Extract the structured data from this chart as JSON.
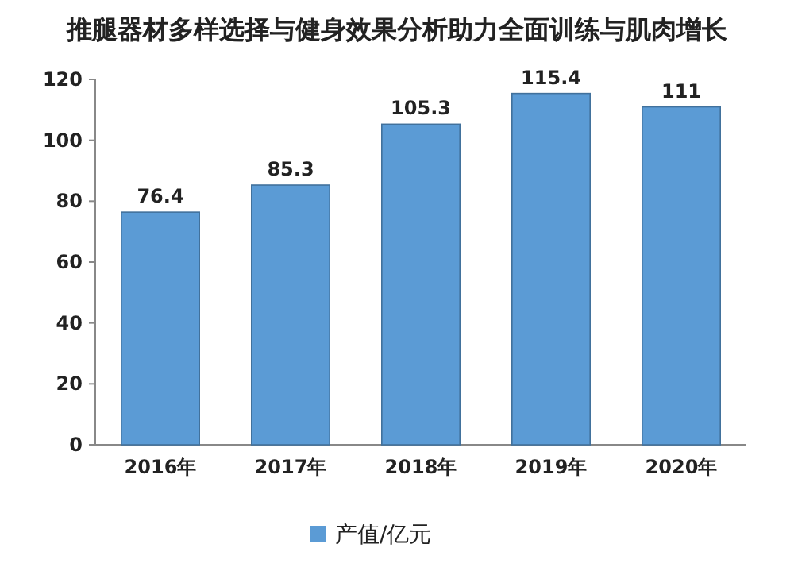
{
  "chart_data": {
    "type": "bar",
    "title": "推腿器材多样选择与健身效果分析助力全面训练与肌肉增长",
    "categories": [
      "2016年",
      "2017年",
      "2018年",
      "2019年",
      "2020年"
    ],
    "series": [
      {
        "name": "产值/亿元",
        "color": "#5b9bd5",
        "values": [
          76.4,
          85.3,
          105.3,
          115.4,
          111
        ]
      }
    ],
    "ylim": [
      0,
      120
    ],
    "yticks": [
      0,
      20,
      40,
      60,
      80,
      100,
      120
    ],
    "data_labels": true,
    "legend": "bottom"
  }
}
